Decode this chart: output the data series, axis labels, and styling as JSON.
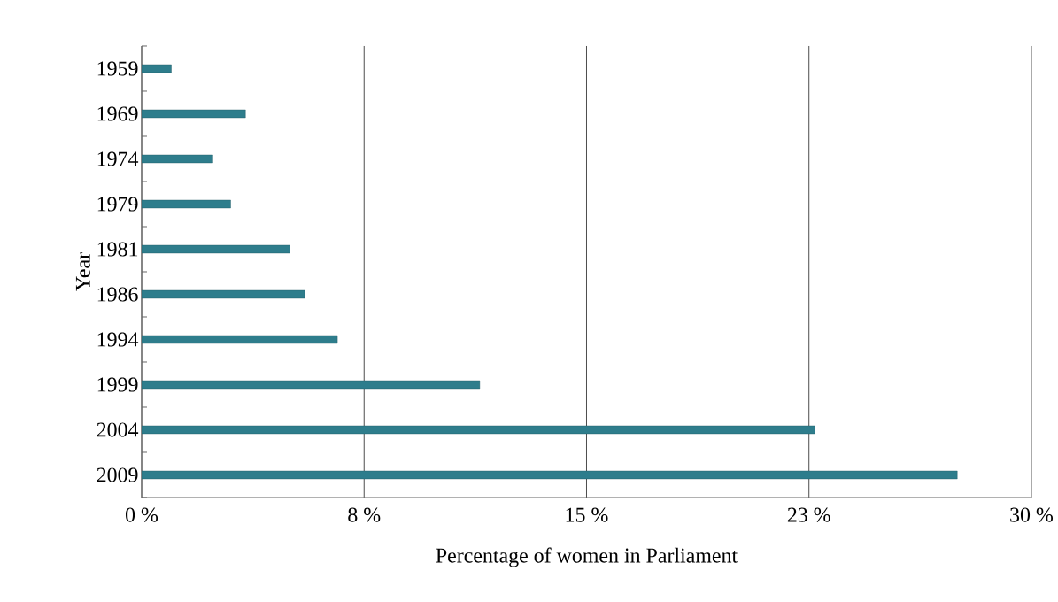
{
  "chart_data": {
    "type": "bar",
    "orientation": "horizontal",
    "xlabel": "Percentage of women in Parliament",
    "ylabel": "Year",
    "categories": [
      "1959",
      "1969",
      "1974",
      "1979",
      "1981",
      "1986",
      "1994",
      "1999",
      "2004",
      "2009"
    ],
    "values": [
      1.0,
      3.5,
      2.4,
      3.0,
      5.0,
      5.5,
      6.6,
      11.4,
      22.7,
      27.5
    ],
    "color": "#2e7d8c",
    "xlim": [
      0,
      30
    ],
    "xticks": [
      {
        "value": 0,
        "label": "0 %"
      },
      {
        "value": 7.5,
        "label": "8 %"
      },
      {
        "value": 15,
        "label": "15 %"
      },
      {
        "value": 22.5,
        "label": "23 %"
      },
      {
        "value": 30,
        "label": "30 %"
      }
    ],
    "grid": "x"
  }
}
